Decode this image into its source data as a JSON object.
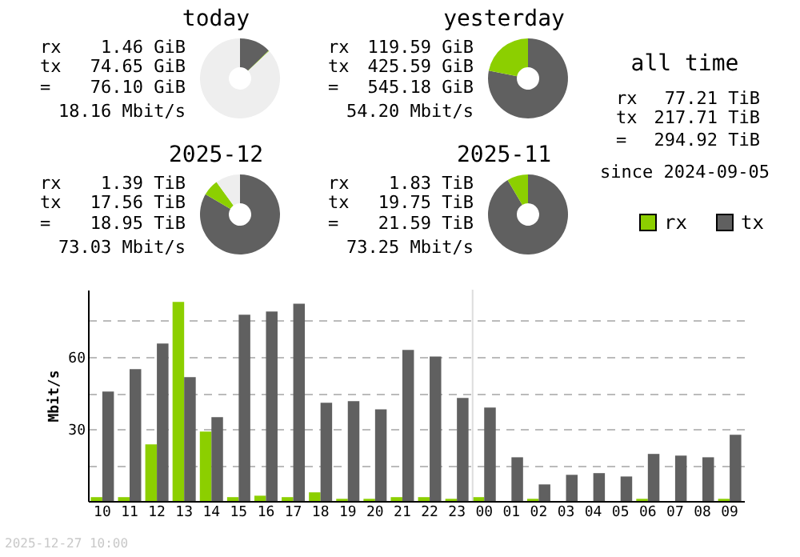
{
  "chart_data": [
    {
      "type": "donut",
      "title": "today",
      "categories": [
        null,
        null,
        null
      ],
      "values": [
        12.75,
        0.25,
        87
      ],
      "colors": [
        "#606060",
        "#8ccf00",
        "#eeeeee"
      ],
      "annotations": [
        "rx",
        "1.46 GiB",
        "tx",
        "74.65 GiB",
        "=",
        "76.10 GiB",
        "18.16 Mbit/s"
      ]
    },
    {
      "type": "donut",
      "title": "yesterday",
      "categories": [
        null,
        null
      ],
      "values": [
        78.1,
        21.9
      ],
      "colors": [
        "#606060",
        "#8ccf00"
      ],
      "annotations": [
        "rx",
        "119.59 GiB",
        "tx",
        "425.59 GiB",
        "=",
        "545.18 GiB",
        "54.20 Mbit/s"
      ]
    },
    {
      "type": "other",
      "title": "all time",
      "annotations": [
        "rx",
        "77.21 TiB",
        "tx",
        "217.71 TiB",
        "=",
        "294.92 TiB",
        "since 2024-09-05"
      ]
    },
    {
      "type": "donut",
      "title": "2025-12",
      "categories": [
        null,
        null,
        null
      ],
      "values": [
        83.4,
        6.6,
        10
      ],
      "colors": [
        "#606060",
        "#8ccf00",
        "#eeeeee"
      ],
      "annotations": [
        "rx",
        "1.39 TiB",
        "tx",
        "17.56 TiB",
        "=",
        "18.95 TiB",
        "73.03 Mbit/s"
      ]
    },
    {
      "type": "donut",
      "title": "2025-11",
      "categories": [
        null,
        null
      ],
      "values": [
        91.5,
        8.5
      ],
      "colors": [
        "#606060",
        "#8ccf00"
      ],
      "annotations": [
        "rx",
        "1.83 TiB",
        "tx",
        "19.75 TiB",
        "=",
        "21.59 TiB",
        "73.25 Mbit/s"
      ]
    },
    {
      "type": "bar",
      "ylabel": "Mbit/s",
      "categories": [
        "10",
        "11",
        "12",
        "13",
        "14",
        "15",
        "16",
        "17",
        "18",
        "19",
        "20",
        "21",
        "22",
        "23",
        "00",
        "01",
        "02",
        "03",
        "04",
        "05",
        "06",
        "07",
        "08",
        "09"
      ],
      "series": [
        {
          "name": "rx",
          "color": "#8ccf00",
          "values": [
            1.6,
            1.6,
            23.6,
            82.9,
            28.9,
            1.6,
            2.2,
            1.6,
            3.6,
            0.9,
            0.9,
            1.6,
            1.6,
            0.9,
            1.6,
            0,
            0.9,
            0,
            0,
            0,
            0.9,
            0,
            0,
            0.9
          ]
        },
        {
          "name": "tx",
          "color": "#606060",
          "values": [
            45.6,
            54.9,
            65.6,
            51.6,
            34.9,
            77.6,
            78.9,
            82.2,
            40.9,
            41.6,
            38.2,
            62.9,
            60.2,
            42.9,
            38.9,
            18.2,
            6.9,
            10.9,
            11.6,
            10.2,
            19.6,
            18.9,
            18.2,
            27.6
          ]
        }
      ],
      "ylim": [
        0,
        88
      ],
      "yticks": [
        {
          "value": 15,
          "label": null
        },
        30,
        {
          "value": 45,
          "label": null
        },
        60,
        {
          "value": 75,
          "label": null
        }
      ],
      "grid": "y",
      "legend": "top right",
      "ref_lines": [
        {
          "axis": "x",
          "value": "00",
          "color": "#dddddd"
        }
      ],
      "annotations": [
        "2025-12-27 10:00"
      ]
    }
  ]
}
